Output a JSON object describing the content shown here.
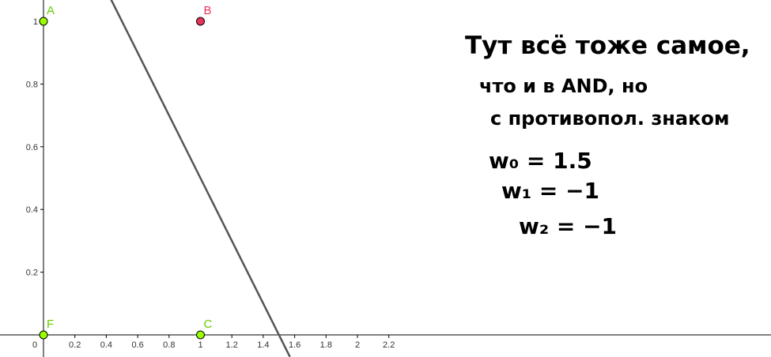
{
  "chart_data": {
    "type": "scatter",
    "xlim": [
      -0.14,
      2.31
    ],
    "ylim": [
      -0.07,
      1.07
    ],
    "x_ticks": [
      {
        "value": 0.2,
        "label": "0.2"
      },
      {
        "value": 0.4,
        "label": "0.4"
      },
      {
        "value": 0.6,
        "label": "0.6"
      },
      {
        "value": 0.8,
        "label": "0.8"
      },
      {
        "value": 1,
        "label": "1"
      },
      {
        "value": 1.2,
        "label": "1.2"
      },
      {
        "value": 1.4,
        "label": "1.4"
      },
      {
        "value": 1.6,
        "label": "1.6"
      },
      {
        "value": 1.8,
        "label": "1.8"
      },
      {
        "value": 2,
        "label": "2"
      },
      {
        "value": 2.2,
        "label": "2.2"
      }
    ],
    "y_ticks": [
      {
        "value": 0.2,
        "label": "0.2"
      },
      {
        "value": 0.4,
        "label": "0.4"
      },
      {
        "value": 0.6,
        "label": "0.6"
      },
      {
        "value": 0.8,
        "label": "0.8"
      },
      {
        "value": 1,
        "label": "1"
      }
    ],
    "origin_label": "0",
    "grid": false,
    "points": [
      {
        "name": "A",
        "x": 0,
        "y": 1,
        "color": "#99ff00",
        "label_color": "#66cc00"
      },
      {
        "name": "B",
        "x": 1,
        "y": 1,
        "color": "#e8335a",
        "label_color": "#e8335a"
      },
      {
        "name": "C",
        "x": 1,
        "y": 0,
        "color": "#99ff00",
        "label_color": "#66cc00"
      },
      {
        "name": "F",
        "x": 0,
        "y": 0,
        "color": "#99ff00",
        "label_color": "#66cc00"
      }
    ],
    "line": {
      "equation": "x + y = 1.5",
      "x1": 0.43,
      "y1": 1.07,
      "x2": 1.57,
      "y2": -0.07,
      "color": "#555555"
    }
  },
  "note": {
    "line1": "Тут всё тоже самое,",
    "line2": "что и в AND, но",
    "line3": "с противопол. знаком",
    "w0": "w₀ = 1.5",
    "w1": "w₁ = −1",
    "w2": "w₂ = −1"
  },
  "colors": {
    "axis": "#000000",
    "line": "#555555",
    "point_outline": "#000000"
  }
}
